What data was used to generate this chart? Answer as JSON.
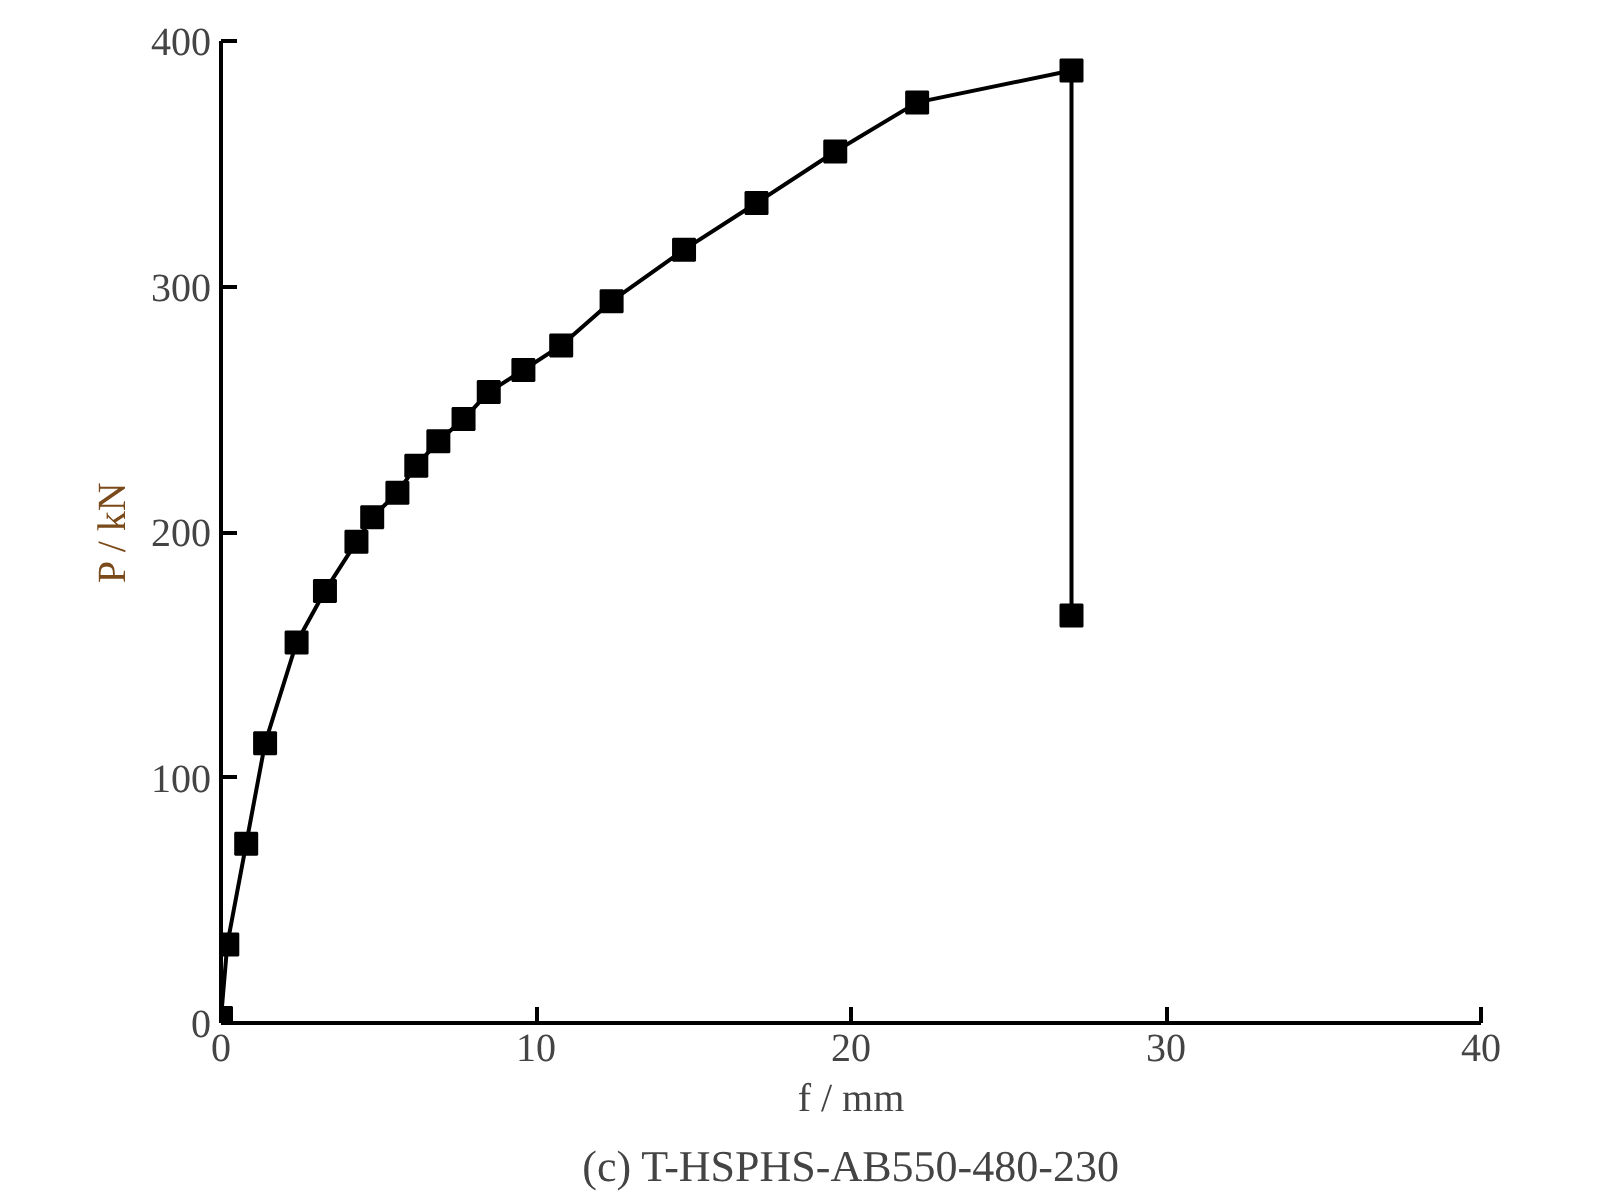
{
  "chart_data": {
    "type": "line",
    "title": "(c) T-HSPHS-AB550-480-230",
    "xlabel": "f / mm",
    "ylabel": "P / kN",
    "x": [
      0,
      0.2,
      0.8,
      1.4,
      2.4,
      3.3,
      4.3,
      4.8,
      5.6,
      6.2,
      6.9,
      7.7,
      8.5,
      9.6,
      10.8,
      12.4,
      14.7,
      17.0,
      19.5,
      22.1,
      27.0,
      27.0
    ],
    "series": [
      {
        "color": "#000000",
        "values": [
          2,
          32,
          73,
          114,
          155,
          176,
          196,
          206,
          216,
          227,
          237,
          246,
          257,
          266,
          276,
          294,
          315,
          334,
          355,
          375,
          388,
          166
        ]
      }
    ],
    "xlim": [
      0,
      40
    ],
    "ylim": [
      0,
      400
    ],
    "xticks": [
      0,
      10,
      20,
      30,
      40
    ],
    "yticks": [
      0,
      100,
      200,
      300,
      400
    ],
    "grid": false,
    "marker": "square",
    "line_style": "solid"
  }
}
